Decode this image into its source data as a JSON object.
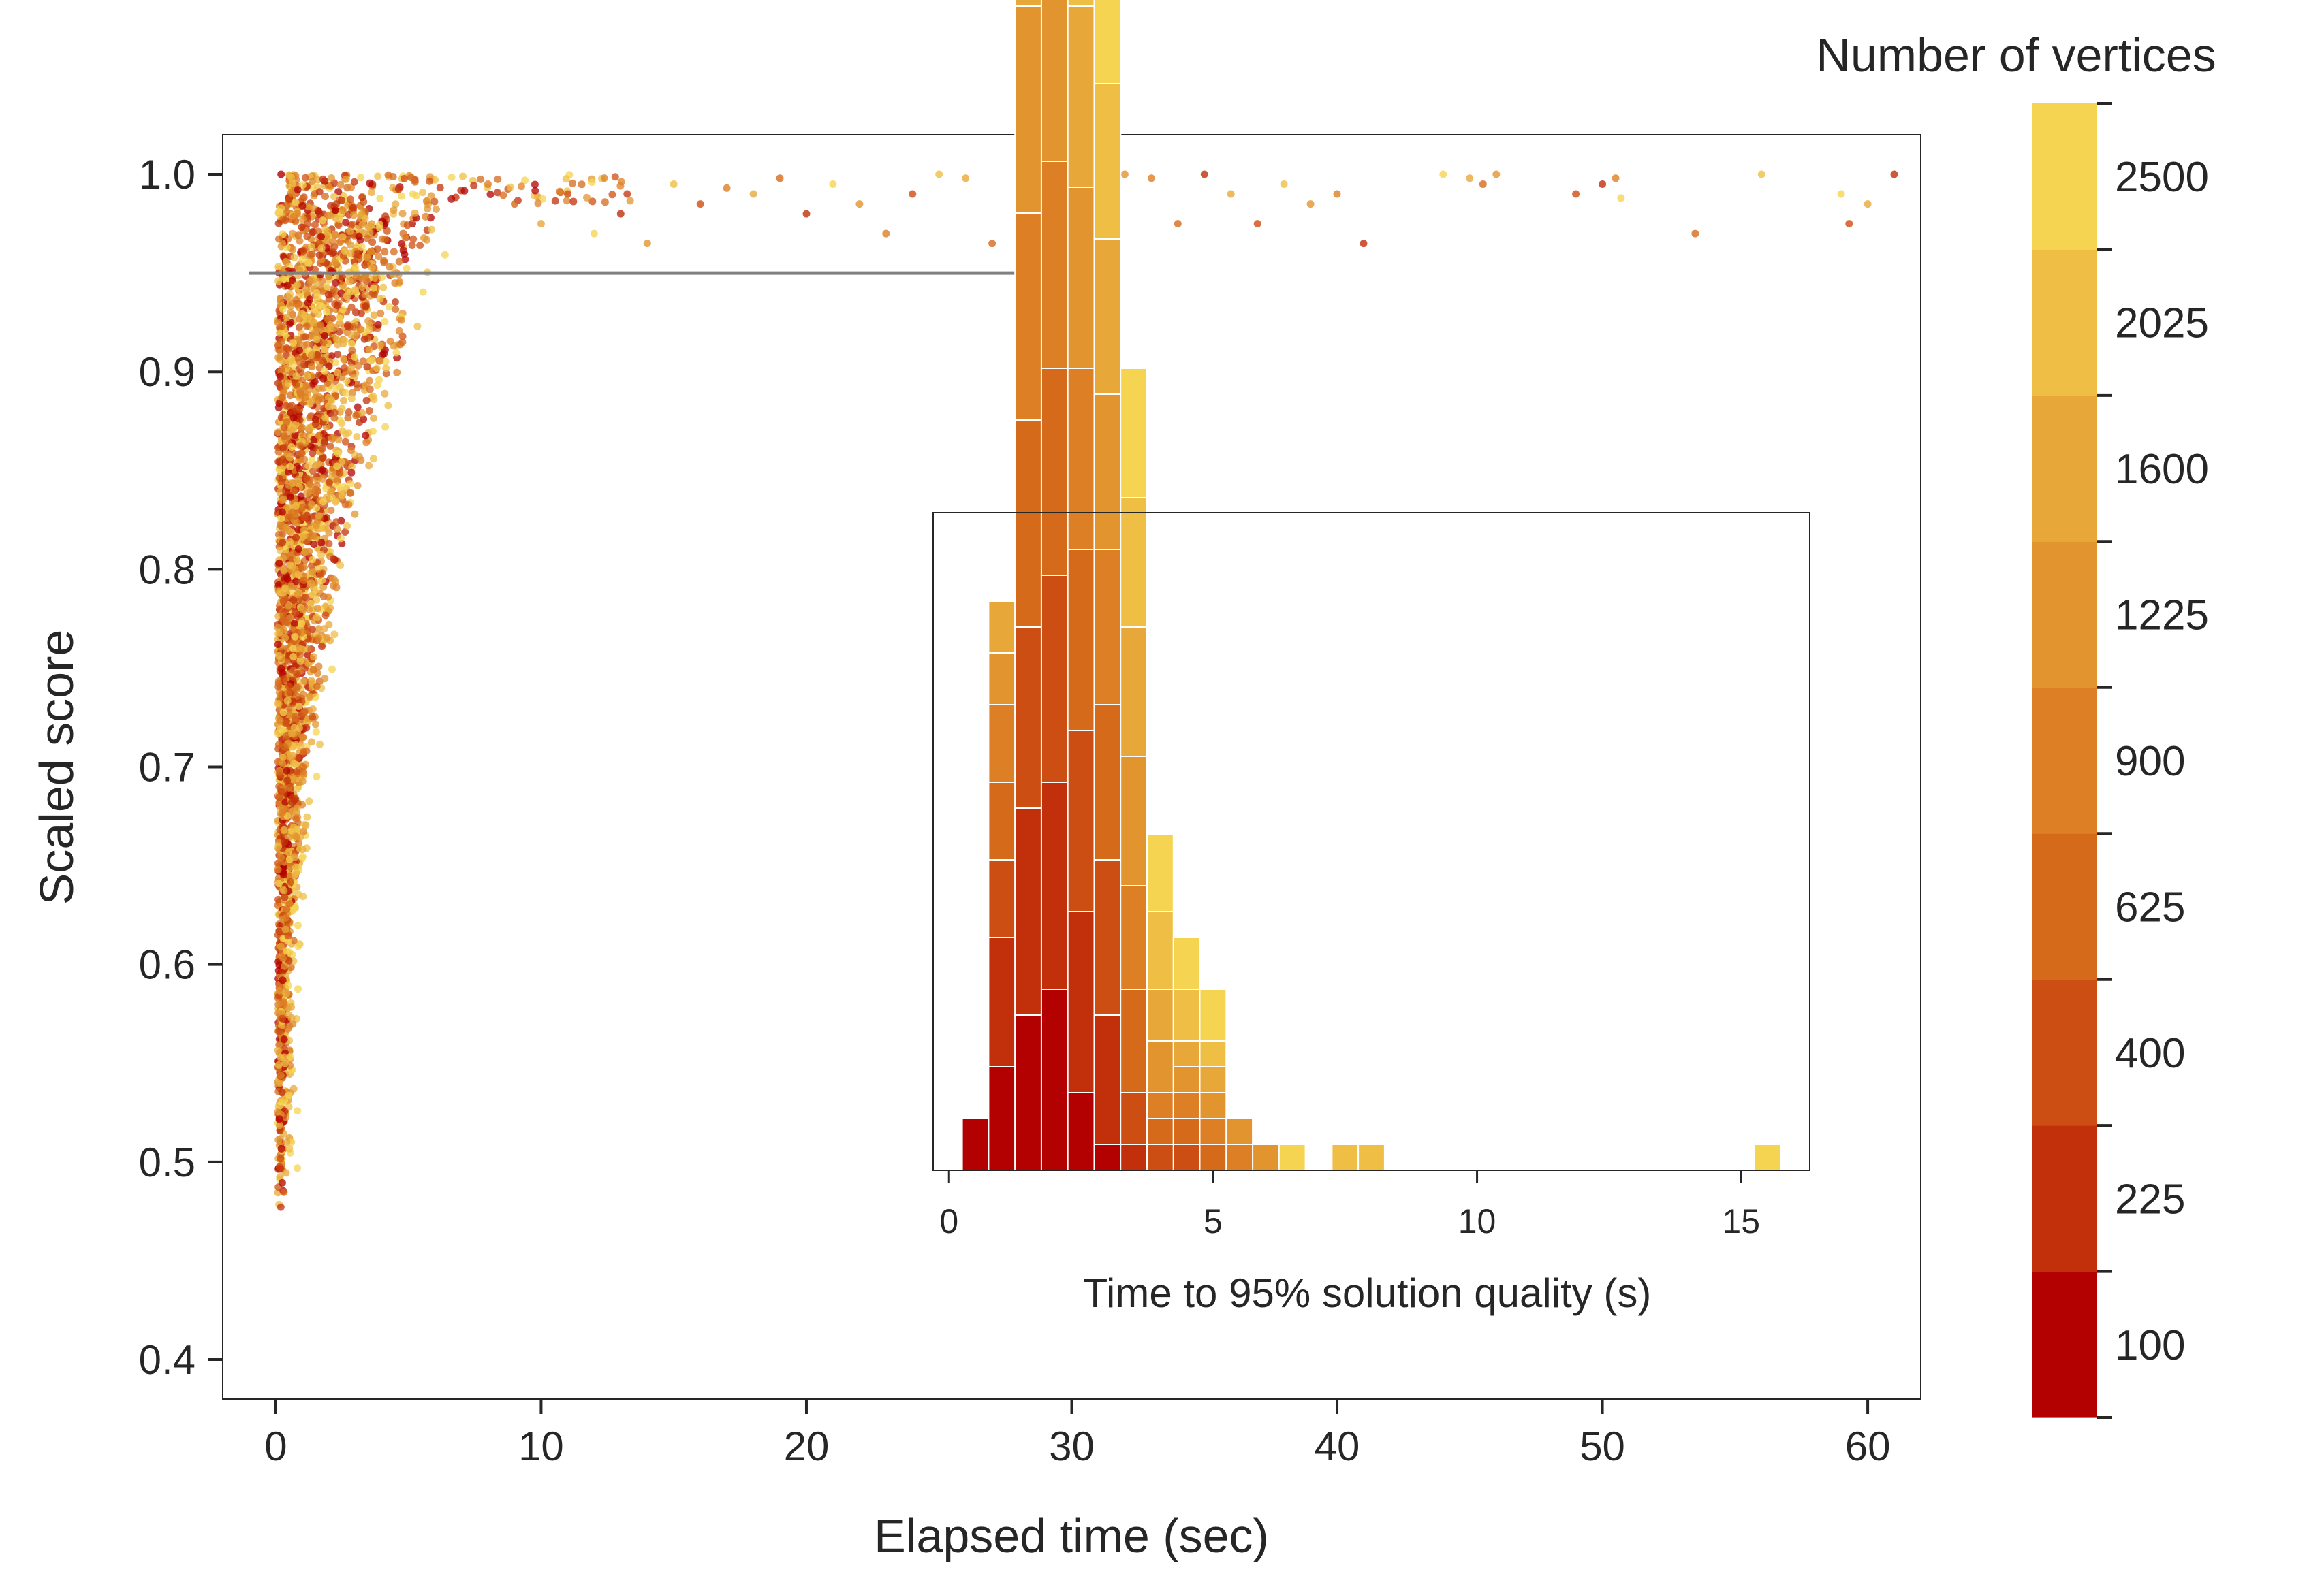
{
  "chart_data": [
    {
      "type": "scatter",
      "xlabel": "Elapsed time (sec)",
      "ylabel": "Scaled score",
      "xlim": [
        -2,
        62
      ],
      "ylim": [
        0.38,
        1.02
      ],
      "xticks": [
        0,
        10,
        20,
        30,
        40,
        50,
        60
      ],
      "yticks": [
        0.4,
        0.5,
        0.6,
        0.7,
        0.8,
        0.9,
        1.0
      ],
      "xtick_labels": [
        "0",
        "10",
        "20",
        "30",
        "40",
        "50",
        "60"
      ],
      "ytick_labels": [
        "0.4",
        "0.5",
        "0.6",
        "0.7",
        "0.8",
        "0.9",
        "1.0"
      ],
      "grid": false,
      "reference_line": {
        "y": 0.95,
        "x_range": [
          -1,
          30
        ],
        "color": "#808080"
      },
      "color_encoding": "Number of vertices",
      "outlier_points": [
        {
          "x": 0.2,
          "y": 1.0,
          "v": 100
        },
        {
          "x": 8,
          "y": 0.995,
          "v": 900
        },
        {
          "x": 9,
          "y": 0.985,
          "v": 625
        },
        {
          "x": 10,
          "y": 0.975,
          "v": 1600
        },
        {
          "x": 11,
          "y": 0.99,
          "v": 400
        },
        {
          "x": 12,
          "y": 0.97,
          "v": 2500
        },
        {
          "x": 13,
          "y": 0.98,
          "v": 225
        },
        {
          "x": 14,
          "y": 0.965,
          "v": 1225
        },
        {
          "x": 15,
          "y": 0.995,
          "v": 2025
        },
        {
          "x": 16,
          "y": 0.985,
          "v": 400
        },
        {
          "x": 17,
          "y": 0.993,
          "v": 900
        },
        {
          "x": 18,
          "y": 0.99,
          "v": 1600
        },
        {
          "x": 19,
          "y": 0.998,
          "v": 625
        },
        {
          "x": 20,
          "y": 0.98,
          "v": 225
        },
        {
          "x": 21,
          "y": 0.995,
          "v": 2500
        },
        {
          "x": 22,
          "y": 0.985,
          "v": 1225
        },
        {
          "x": 23,
          "y": 0.97,
          "v": 900
        },
        {
          "x": 24,
          "y": 0.99,
          "v": 400
        },
        {
          "x": 25,
          "y": 1.0,
          "v": 2025
        },
        {
          "x": 26,
          "y": 0.998,
          "v": 1600
        },
        {
          "x": 27,
          "y": 0.965,
          "v": 625
        },
        {
          "x": 28,
          "y": 0.99,
          "v": 225
        },
        {
          "x": 29,
          "y": 1.0,
          "v": 100
        },
        {
          "x": 30,
          "y": 0.995,
          "v": 2500
        },
        {
          "x": 31,
          "y": 0.985,
          "v": 2025
        },
        {
          "x": 31.5,
          "y": 0.963,
          "v": 400
        },
        {
          "x": 32,
          "y": 1.0,
          "v": 1225
        },
        {
          "x": 33,
          "y": 0.998,
          "v": 900
        },
        {
          "x": 34,
          "y": 0.975,
          "v": 625
        },
        {
          "x": 35,
          "y": 1.0,
          "v": 225
        },
        {
          "x": 36,
          "y": 0.99,
          "v": 1600
        },
        {
          "x": 37,
          "y": 0.975,
          "v": 400
        },
        {
          "x": 38,
          "y": 0.995,
          "v": 2025
        },
        {
          "x": 39,
          "y": 0.985,
          "v": 1225
        },
        {
          "x": 40,
          "y": 0.99,
          "v": 900
        },
        {
          "x": 41,
          "y": 0.965,
          "v": 225
        },
        {
          "x": 44,
          "y": 1.0,
          "v": 2500
        },
        {
          "x": 45,
          "y": 0.998,
          "v": 1600
        },
        {
          "x": 45.5,
          "y": 0.995,
          "v": 625
        },
        {
          "x": 46,
          "y": 1.0,
          "v": 1225
        },
        {
          "x": 49,
          "y": 0.99,
          "v": 400
        },
        {
          "x": 50,
          "y": 0.995,
          "v": 225
        },
        {
          "x": 50.5,
          "y": 0.998,
          "v": 900
        },
        {
          "x": 50.7,
          "y": 0.988,
          "v": 2500
        },
        {
          "x": 53.5,
          "y": 0.97,
          "v": 625
        },
        {
          "x": 56,
          "y": 1.0,
          "v": 2025
        },
        {
          "x": 59,
          "y": 0.99,
          "v": 2500
        },
        {
          "x": 59.3,
          "y": 0.975,
          "v": 400
        },
        {
          "x": 60,
          "y": 0.985,
          "v": 1600
        },
        {
          "x": 61,
          "y": 1.0,
          "v": 225
        }
      ]
    },
    {
      "type": "bar",
      "subtype": "stacked_histogram",
      "xlabel": "Time to 95% solution quality (s)",
      "ylabel": "",
      "xlim": [
        -0.3,
        16.3
      ],
      "xticks": [
        0,
        5,
        10,
        15
      ],
      "xtick_labels": [
        "0",
        "5",
        "10",
        "15"
      ],
      "bin_width": 0.5,
      "bin_starts": [
        0.25,
        0.75,
        1.25,
        1.75,
        2.25,
        2.75,
        3.25,
        3.75,
        4.25,
        4.75,
        5.25,
        5.75,
        6.25,
        7.25,
        7.75,
        15.25
      ],
      "stack_order": [
        "100",
        "225",
        "400",
        "625",
        "900",
        "1225",
        "1600",
        "2025",
        "2500"
      ],
      "counts": [
        [
          2,
          0,
          0,
          0,
          0,
          0,
          0,
          0,
          0
        ],
        [
          4,
          5,
          3,
          3,
          3,
          2,
          2,
          0,
          0
        ],
        [
          6,
          8,
          7,
          8,
          8,
          8,
          7,
          6,
          5
        ],
        [
          7,
          8,
          8,
          8,
          8,
          8,
          8,
          8,
          8
        ],
        [
          3,
          7,
          7,
          7,
          7,
          7,
          7,
          7,
          6
        ],
        [
          1,
          5,
          6,
          6,
          6,
          6,
          6,
          6,
          6
        ],
        [
          0,
          1,
          2,
          4,
          4,
          5,
          5,
          5,
          5
        ],
        [
          0,
          0,
          1,
          1,
          1,
          2,
          2,
          3,
          3
        ],
        [
          0,
          0,
          1,
          1,
          1,
          1,
          1,
          2,
          2
        ],
        [
          0,
          0,
          0,
          1,
          1,
          1,
          1,
          1,
          2
        ],
        [
          0,
          0,
          0,
          0,
          1,
          1,
          0,
          0,
          0
        ],
        [
          0,
          0,
          0,
          0,
          0,
          1,
          0,
          0,
          0
        ],
        [
          0,
          0,
          0,
          0,
          0,
          0,
          0,
          0,
          1
        ],
        [
          0,
          0,
          0,
          0,
          0,
          0,
          0,
          1,
          0
        ],
        [
          0,
          0,
          0,
          0,
          0,
          0,
          0,
          1,
          0
        ],
        [
          0,
          0,
          0,
          0,
          0,
          0,
          0,
          0,
          1
        ]
      ]
    }
  ],
  "colorbar": {
    "title": "Number of vertices",
    "levels": [
      "100",
      "225",
      "400",
      "625",
      "900",
      "1225",
      "1600",
      "2025",
      "2500"
    ],
    "colors": [
      "#b30000",
      "#c1300b",
      "#cd4e12",
      "#d66a1b",
      "#dd8025",
      "#e2942f",
      "#e8a839",
      "#efbf45",
      "#f5d451"
    ]
  }
}
